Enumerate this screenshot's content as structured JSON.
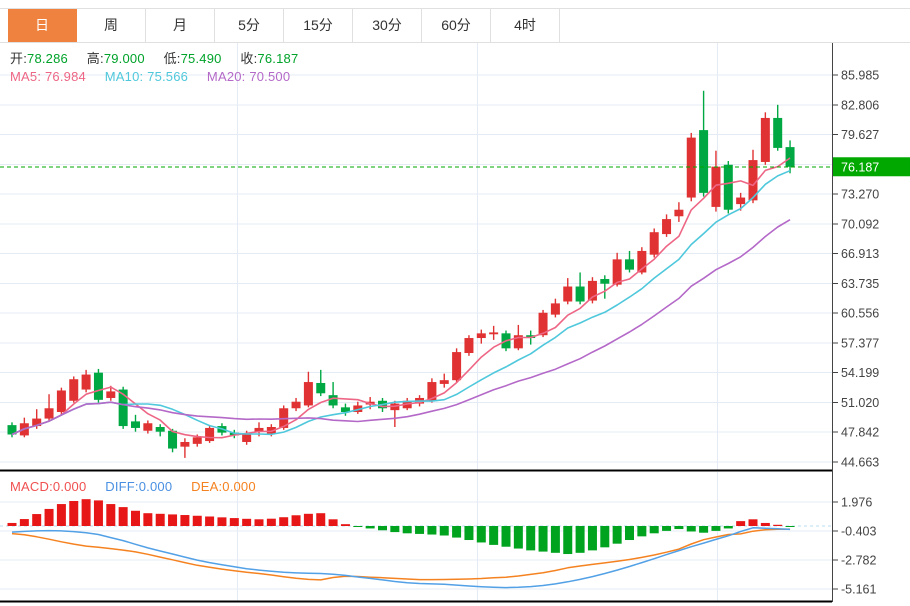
{
  "tabs": {
    "items": [
      {
        "id": "day",
        "label": "日",
        "active": true
      },
      {
        "id": "week",
        "label": "周",
        "active": false
      },
      {
        "id": "month",
        "label": "月",
        "active": false
      },
      {
        "id": "min5",
        "label": "5分",
        "active": false
      },
      {
        "id": "min15",
        "label": "15分",
        "active": false
      },
      {
        "id": "min30",
        "label": "30分",
        "active": false
      },
      {
        "id": "min60",
        "label": "60分",
        "active": false
      },
      {
        "id": "hour4",
        "label": "4时",
        "active": false
      }
    ]
  },
  "kline_readout": {
    "open_label": "开:",
    "open": "78.286",
    "high_label": "高:",
    "high": "79.000",
    "low_label": "低:",
    "low": "75.490",
    "close_label": "收:",
    "close": "76.187"
  },
  "ma_readout": {
    "ma5_label": "MA5:",
    "ma5": "76.984",
    "ma10_label": "MA10:",
    "ma10": "75.566",
    "ma20_label": "MA20:",
    "ma20": "70.500"
  },
  "macd_readout": {
    "macd_label": "MACD:",
    "macd": "0.000",
    "diff_label": "DIFF:",
    "diff": "0.000",
    "dea_label": "DEA:",
    "dea": "0.000"
  },
  "colors": {
    "up_red": "#e03232",
    "down_green": "#00a843",
    "price_badge": "#00a800",
    "ma5": "#ee6685",
    "ma10": "#4fc8dc",
    "ma20": "#b469c8",
    "diff_line": "#52a0e6",
    "dea_line": "#f58220",
    "macd_hist_up": "#e81717",
    "macd_hist_down": "#00a31e",
    "tab_active_bg": "#f0823f",
    "grid": "#e5ebf4",
    "axis_line": "#444444",
    "ohlc_value_green": "#00a32a",
    "zero_dash": "#b8dcf2",
    "current_dash": "#00a800"
  },
  "chart_data": {
    "type": "candlestick",
    "panes": [
      "kline",
      "macd"
    ],
    "kline": {
      "axis_labels": [
        "85.985",
        "82.806",
        "79.627",
        "73.270",
        "70.092",
        "66.913",
        "63.735",
        "60.556",
        "57.377",
        "54.199",
        "51.020",
        "47.842",
        "44.663"
      ],
      "hidden_grid_tick": 76.449,
      "current_price": "76.187",
      "ma_periods": [
        5,
        10,
        20
      ],
      "candles": [
        [
          48.6,
          48.9,
          47.3,
          47.6
        ],
        [
          47.5,
          49.4,
          47.3,
          48.8
        ],
        [
          48.5,
          50.3,
          48.2,
          49.3
        ],
        [
          49.3,
          51.9,
          49.0,
          50.4
        ],
        [
          50.0,
          52.6,
          49.7,
          52.3
        ],
        [
          51.2,
          53.8,
          51.0,
          53.5
        ],
        [
          52.4,
          54.5,
          52.1,
          54.0
        ],
        [
          54.2,
          54.6,
          51.0,
          51.3
        ],
        [
          51.5,
          52.8,
          51.2,
          52.2
        ],
        [
          52.4,
          52.7,
          48.2,
          48.5
        ],
        [
          49.0,
          49.7,
          47.9,
          48.3
        ],
        [
          48.0,
          49.1,
          47.7,
          48.8
        ],
        [
          48.4,
          48.7,
          47.4,
          47.9
        ],
        [
          48.0,
          48.2,
          45.7,
          46.1
        ],
        [
          46.3,
          47.2,
          45.1,
          46.8
        ],
        [
          46.6,
          47.6,
          46.3,
          47.3
        ],
        [
          46.9,
          48.6,
          46.7,
          48.3
        ],
        [
          48.5,
          48.8,
          47.5,
          47.8
        ],
        [
          47.8,
          48.1,
          47.2,
          47.5
        ],
        [
          46.8,
          48.0,
          46.5,
          47.7
        ],
        [
          47.9,
          48.9,
          47.4,
          48.3
        ],
        [
          47.7,
          48.7,
          47.4,
          48.4
        ],
        [
          48.3,
          50.7,
          48.1,
          50.4
        ],
        [
          50.4,
          51.5,
          50.1,
          51.1
        ],
        [
          50.7,
          54.3,
          50.5,
          53.2
        ],
        [
          53.1,
          54.5,
          51.7,
          52.0
        ],
        [
          51.8,
          53.2,
          50.4,
          50.7
        ],
        [
          50.5,
          50.9,
          49.6,
          50.0
        ],
        [
          50.0,
          51.1,
          49.8,
          50.7
        ],
        [
          50.8,
          51.6,
          50.3,
          51.1
        ],
        [
          51.2,
          51.5,
          50.0,
          50.4
        ],
        [
          50.2,
          51.2,
          48.4,
          50.9
        ],
        [
          50.4,
          51.5,
          50.2,
          51.2
        ],
        [
          50.9,
          51.8,
          50.6,
          51.5
        ],
        [
          51.2,
          53.6,
          51.0,
          53.2
        ],
        [
          53.0,
          54.1,
          52.6,
          53.4
        ],
        [
          53.4,
          56.8,
          53.2,
          56.4
        ],
        [
          56.3,
          58.2,
          56.0,
          57.9
        ],
        [
          57.9,
          58.8,
          57.3,
          58.4
        ],
        [
          58.3,
          59.2,
          57.7,
          58.5
        ],
        [
          58.4,
          58.7,
          56.5,
          56.8
        ],
        [
          56.8,
          59.3,
          56.6,
          58.2
        ],
        [
          58.2,
          58.7,
          57.2,
          57.9
        ],
        [
          58.2,
          60.9,
          58.0,
          60.6
        ],
        [
          60.4,
          62.1,
          60.1,
          61.6
        ],
        [
          61.8,
          64.3,
          61.5,
          63.4
        ],
        [
          63.4,
          64.9,
          61.5,
          61.8
        ],
        [
          61.9,
          64.4,
          61.6,
          64.0
        ],
        [
          64.2,
          64.6,
          62.1,
          63.7
        ],
        [
          63.6,
          67.0,
          63.4,
          66.3
        ],
        [
          66.3,
          67.2,
          64.9,
          65.2
        ],
        [
          64.9,
          67.6,
          64.7,
          67.2
        ],
        [
          66.8,
          69.6,
          66.5,
          69.2
        ],
        [
          69.0,
          71.1,
          68.7,
          70.6
        ],
        [
          70.9,
          72.4,
          70.3,
          71.6
        ],
        [
          72.9,
          79.8,
          72.5,
          79.3
        ],
        [
          80.1,
          84.3,
          73.0,
          73.4
        ],
        [
          71.9,
          77.9,
          71.4,
          76.2
        ],
        [
          76.4,
          76.8,
          71.2,
          71.6
        ],
        [
          72.2,
          73.4,
          71.5,
          72.9
        ],
        [
          72.6,
          78.0,
          72.3,
          76.9
        ],
        [
          76.7,
          82.0,
          76.4,
          81.4
        ],
        [
          81.4,
          82.8,
          77.9,
          78.2
        ],
        [
          78.286,
          79.0,
          75.49,
          76.187
        ]
      ]
    },
    "macd": {
      "axis_labels": [
        "1.976",
        "-0.403",
        "-2.782",
        "-5.161"
      ],
      "hist": [
        0.25,
        0.57,
        0.98,
        1.4,
        1.8,
        2.05,
        2.2,
        2.1,
        1.8,
        1.55,
        1.25,
        1.05,
        1.0,
        0.95,
        0.9,
        0.84,
        0.78,
        0.71,
        0.65,
        0.59,
        0.55,
        0.6,
        0.72,
        0.88,
        1.0,
        1.05,
        0.55,
        0.15,
        -0.08,
        -0.2,
        -0.35,
        -0.5,
        -0.6,
        -0.65,
        -0.7,
        -0.78,
        -0.95,
        -1.15,
        -1.35,
        -1.55,
        -1.7,
        -1.85,
        -2.0,
        -2.1,
        -2.2,
        -2.3,
        -2.2,
        -2.0,
        -1.75,
        -1.45,
        -1.15,
        -0.85,
        -0.6,
        -0.4,
        -0.25,
        -0.45,
        -0.55,
        -0.4,
        -0.2,
        0.4,
        0.55,
        0.25,
        0.1,
        -0.05
      ],
      "diff": [
        -0.5,
        -0.44,
        -0.4,
        -0.38,
        -0.4,
        -0.46,
        -0.55,
        -0.7,
        -0.95,
        -1.2,
        -1.5,
        -1.8,
        -2.05,
        -2.3,
        -2.55,
        -2.8,
        -3.0,
        -3.18,
        -3.35,
        -3.5,
        -3.62,
        -3.72,
        -3.8,
        -3.85,
        -3.88,
        -3.9,
        -3.95,
        -4.05,
        -4.18,
        -4.3,
        -4.42,
        -4.55,
        -4.65,
        -4.72,
        -4.75,
        -4.78,
        -4.85,
        -4.92,
        -4.98,
        -5.02,
        -5.05,
        -5.03,
        -4.97,
        -4.88,
        -4.75,
        -4.58,
        -4.38,
        -4.15,
        -3.9,
        -3.62,
        -3.32,
        -3.0,
        -2.68,
        -2.35,
        -2.02,
        -1.7,
        -1.4,
        -1.1,
        -0.8,
        -0.45,
        -0.15,
        -0.18,
        -0.22,
        -0.28
      ]
    }
  }
}
